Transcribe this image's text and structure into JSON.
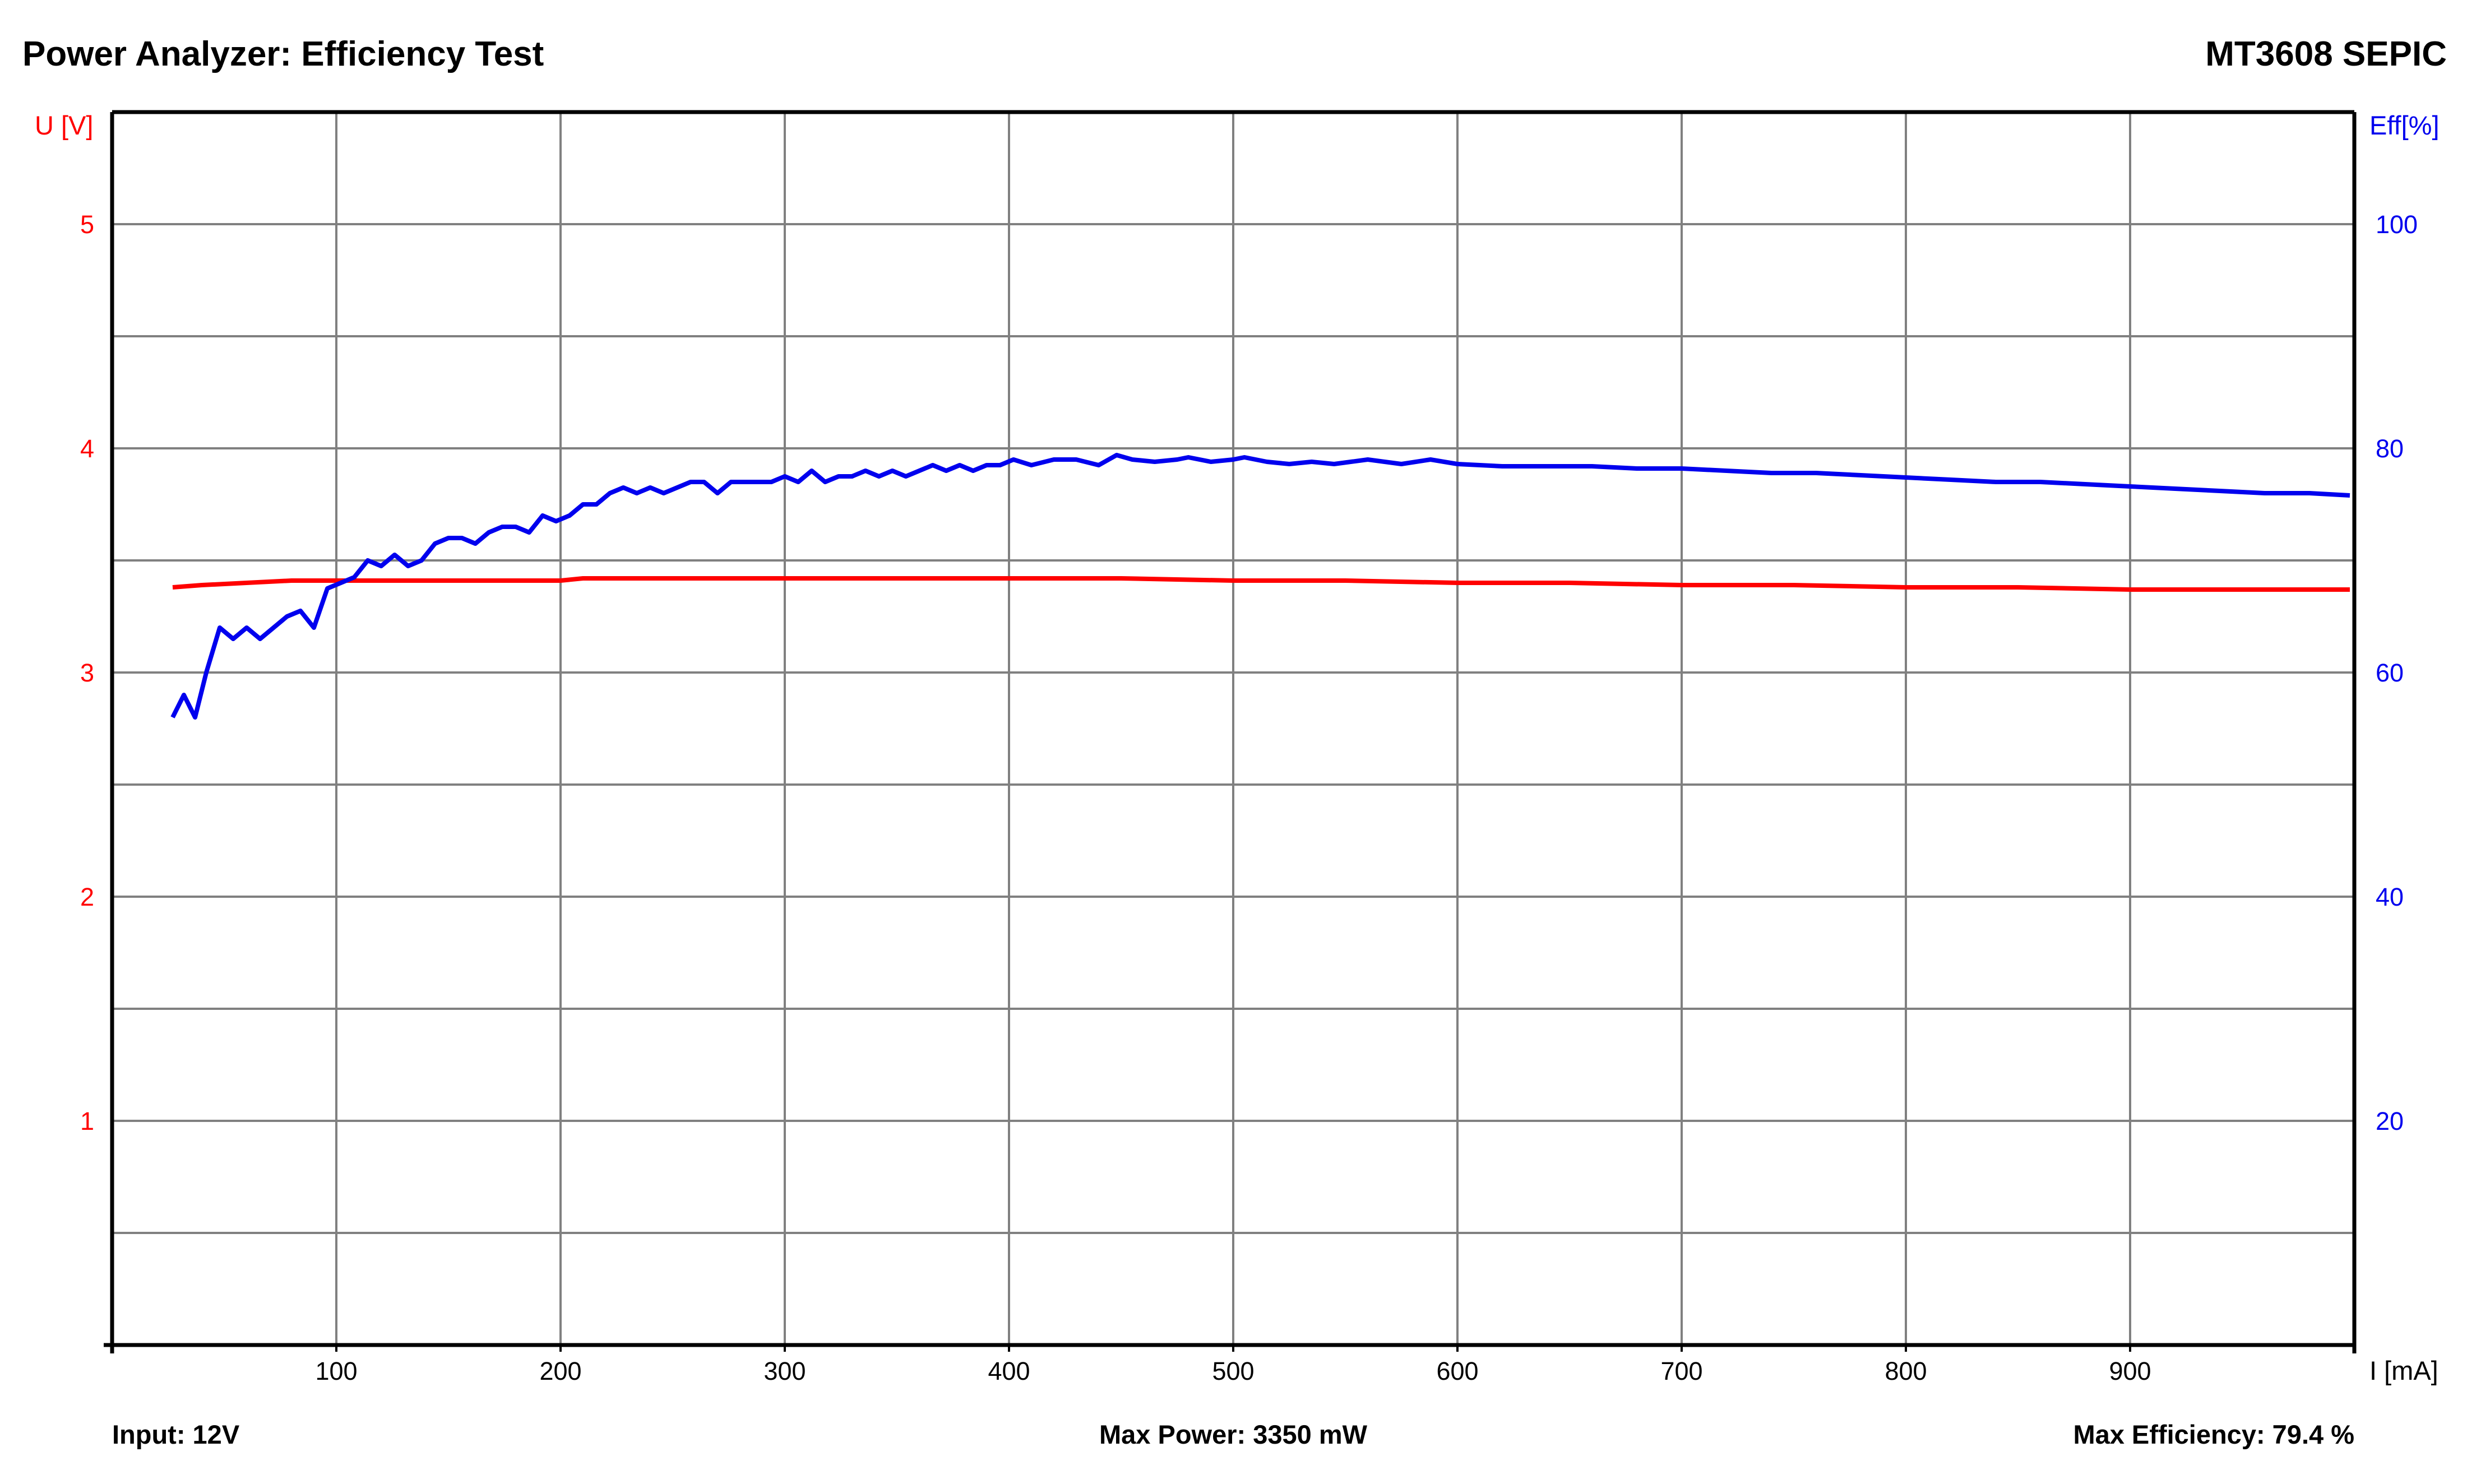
{
  "header": {
    "title": "Power Analyzer: Efficiency Test",
    "device": "MT3608 SEPIC"
  },
  "footer": {
    "input": "Input: 12V",
    "max_power": "Max Power: 3350 mW",
    "max_efficiency": "Max Efficiency: 79.4 %"
  },
  "colors": {
    "voltage": "#ff0000",
    "efficiency": "#0000ee",
    "grid": "#808080",
    "axis": "#000000"
  },
  "chart_data": {
    "type": "line",
    "xlabel": "I [mA]",
    "ylabel_left": "U [V]",
    "ylabel_right": "Eff[%]",
    "xlim": [
      0,
      1000
    ],
    "ylim_left": [
      0,
      5.5
    ],
    "ylim_right": [
      0,
      110
    ],
    "x_ticks": [
      100,
      200,
      300,
      400,
      500,
      600,
      700,
      800,
      900
    ],
    "y_left_ticks": [
      1,
      2,
      3,
      4,
      5
    ],
    "y_right_ticks": [
      20,
      40,
      60,
      80,
      100
    ],
    "grid": true,
    "series": [
      {
        "axis": "left",
        "x": [
          27,
          40,
          60,
          80,
          100,
          150,
          200,
          210,
          230,
          260,
          300,
          350,
          400,
          450,
          500,
          550,
          600,
          650,
          700,
          750,
          800,
          850,
          900,
          950,
          998
        ],
        "values": [
          3.38,
          3.39,
          3.4,
          3.41,
          3.41,
          3.41,
          3.41,
          3.42,
          3.42,
          3.42,
          3.42,
          3.42,
          3.42,
          3.42,
          3.41,
          3.41,
          3.4,
          3.4,
          3.39,
          3.39,
          3.38,
          3.38,
          3.37,
          3.37,
          3.37
        ]
      },
      {
        "axis": "right",
        "x": [
          27,
          32,
          37,
          42,
          48,
          54,
          60,
          66,
          72,
          78,
          84,
          90,
          96,
          102,
          108,
          114,
          120,
          126,
          132,
          138,
          144,
          150,
          156,
          162,
          168,
          174,
          180,
          186,
          192,
          198,
          204,
          210,
          216,
          222,
          228,
          234,
          240,
          246,
          252,
          258,
          264,
          270,
          276,
          282,
          288,
          294,
          300,
          306,
          312,
          318,
          324,
          330,
          336,
          342,
          348,
          354,
          360,
          366,
          372,
          378,
          384,
          390,
          396,
          402,
          410,
          420,
          430,
          440,
          448,
          455,
          465,
          475,
          480,
          490,
          500,
          505,
          515,
          525,
          535,
          545,
          560,
          575,
          588,
          600,
          620,
          640,
          660,
          680,
          700,
          720,
          740,
          760,
          780,
          800,
          820,
          840,
          860,
          880,
          900,
          920,
          940,
          960,
          980,
          998
        ],
        "values": [
          56,
          58,
          56,
          60,
          64,
          63,
          64,
          63,
          64,
          65,
          65.5,
          64,
          67.5,
          68,
          68.5,
          70,
          69.5,
          70.5,
          69.5,
          70,
          71.5,
          72,
          72,
          71.5,
          72.5,
          73,
          73,
          72.5,
          74,
          73.5,
          74,
          75,
          75,
          76,
          76.5,
          76,
          76.5,
          76,
          76.5,
          77,
          77,
          76,
          77,
          77,
          77,
          77,
          77.5,
          77,
          78,
          77,
          77.5,
          77.5,
          78,
          77.5,
          78,
          77.5,
          78,
          78.5,
          78,
          78.5,
          78,
          78.5,
          78.5,
          79,
          78.5,
          79,
          79,
          78.5,
          79.4,
          79,
          78.8,
          79,
          79.2,
          78.8,
          79,
          79.2,
          78.8,
          78.6,
          78.8,
          78.6,
          79,
          78.6,
          79,
          78.6,
          78.4,
          78.4,
          78.4,
          78.2,
          78.2,
          78,
          77.8,
          77.8,
          77.6,
          77.4,
          77.2,
          77,
          77,
          76.8,
          76.6,
          76.4,
          76.2,
          76,
          76,
          75.8
        ]
      }
    ]
  }
}
